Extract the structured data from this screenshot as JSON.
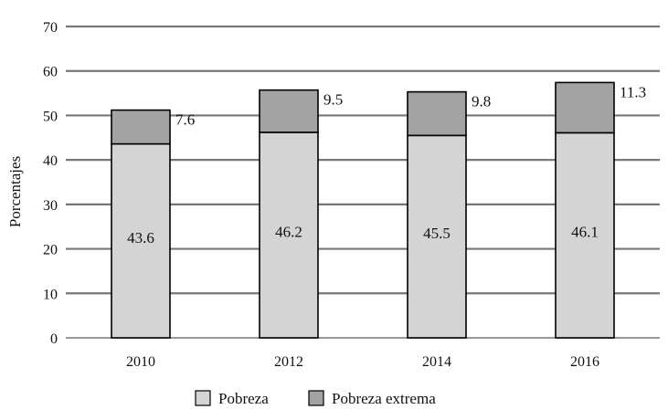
{
  "chart_data": {
    "type": "bar",
    "stacked": true,
    "title": "",
    "xlabel": "",
    "ylabel": "Porcentajes",
    "ylim": [
      0,
      70
    ],
    "yticks": [
      0,
      10,
      20,
      30,
      40,
      50,
      60,
      70
    ],
    "grid": true,
    "legend_position": "bottom-center",
    "categories": [
      "2010",
      "2012",
      "2014",
      "2016"
    ],
    "series": [
      {
        "name": "Pobreza",
        "values": [
          43.6,
          46.2,
          45.5,
          46.1
        ],
        "color": "#d4d4d4",
        "labels": [
          "43.6",
          "46.2",
          "45.5",
          "46.1"
        ]
      },
      {
        "name": "Pobreza extrema",
        "values": [
          7.6,
          9.5,
          9.8,
          11.3
        ],
        "color": "#a3a3a3",
        "labels": [
          "7.6",
          "9.5",
          "9.8",
          "11.3"
        ]
      }
    ]
  }
}
